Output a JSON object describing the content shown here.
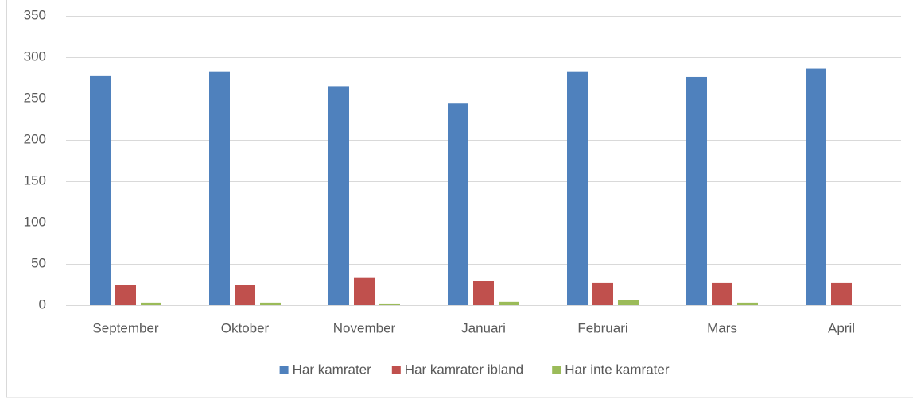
{
  "chart_data": {
    "type": "bar",
    "categories": [
      "September",
      "Oktober",
      "November",
      "Januari",
      "Februari",
      "Mars",
      "April"
    ],
    "series": [
      {
        "name": "Har kamrater",
        "color": "#4f81bd",
        "values": [
          278,
          283,
          265,
          244,
          283,
          276,
          286
        ]
      },
      {
        "name": "Har kamrater ibland",
        "color": "#c0504d",
        "values": [
          25,
          25,
          33,
          29,
          27,
          27,
          27
        ]
      },
      {
        "name": "Har inte kamrater",
        "color": "#9bbb59",
        "values": [
          3,
          3,
          2,
          4,
          6,
          3,
          0
        ]
      }
    ],
    "ylim": [
      0,
      350
    ],
    "yticks": [
      0,
      50,
      100,
      150,
      200,
      250,
      300,
      350
    ],
    "grid": true,
    "legend": "bottom"
  }
}
